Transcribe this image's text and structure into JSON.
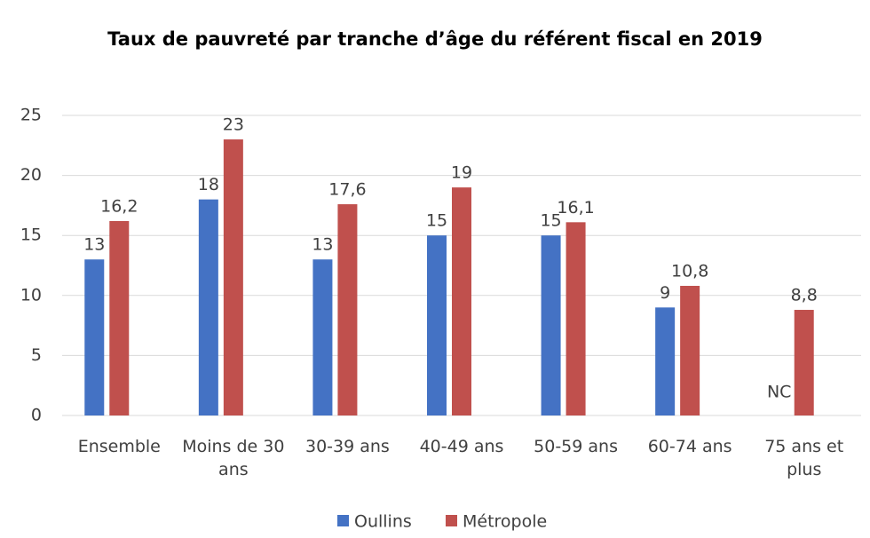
{
  "chart_data": {
    "type": "bar",
    "title": "Taux de pauvreté par tranche d’âge du référent fiscal en 2019",
    "categories": [
      "Ensemble",
      "Moins de 30 ans",
      "30-39 ans",
      "40-49 ans",
      "50-59 ans",
      "60-74 ans",
      "75 ans et plus"
    ],
    "series": [
      {
        "name": "Oullins",
        "color": "#4472c4",
        "values": [
          13,
          18,
          13,
          15,
          15,
          9,
          null
        ],
        "value_labels": [
          "13",
          "18",
          "13",
          "15",
          "15",
          "9",
          "NC"
        ]
      },
      {
        "name": "Métropole",
        "color": "#c0504d",
        "values": [
          16.2,
          23,
          17.6,
          19,
          16.1,
          10.8,
          8.8
        ],
        "value_labels": [
          "16,2",
          "23",
          "17,6",
          "19",
          "16,1",
          "10,8",
          "8,8"
        ]
      }
    ],
    "ylim": [
      0,
      25
    ],
    "yticks": [
      0,
      5,
      10,
      15,
      20,
      25
    ],
    "grid": true,
    "legend": "bottom"
  }
}
